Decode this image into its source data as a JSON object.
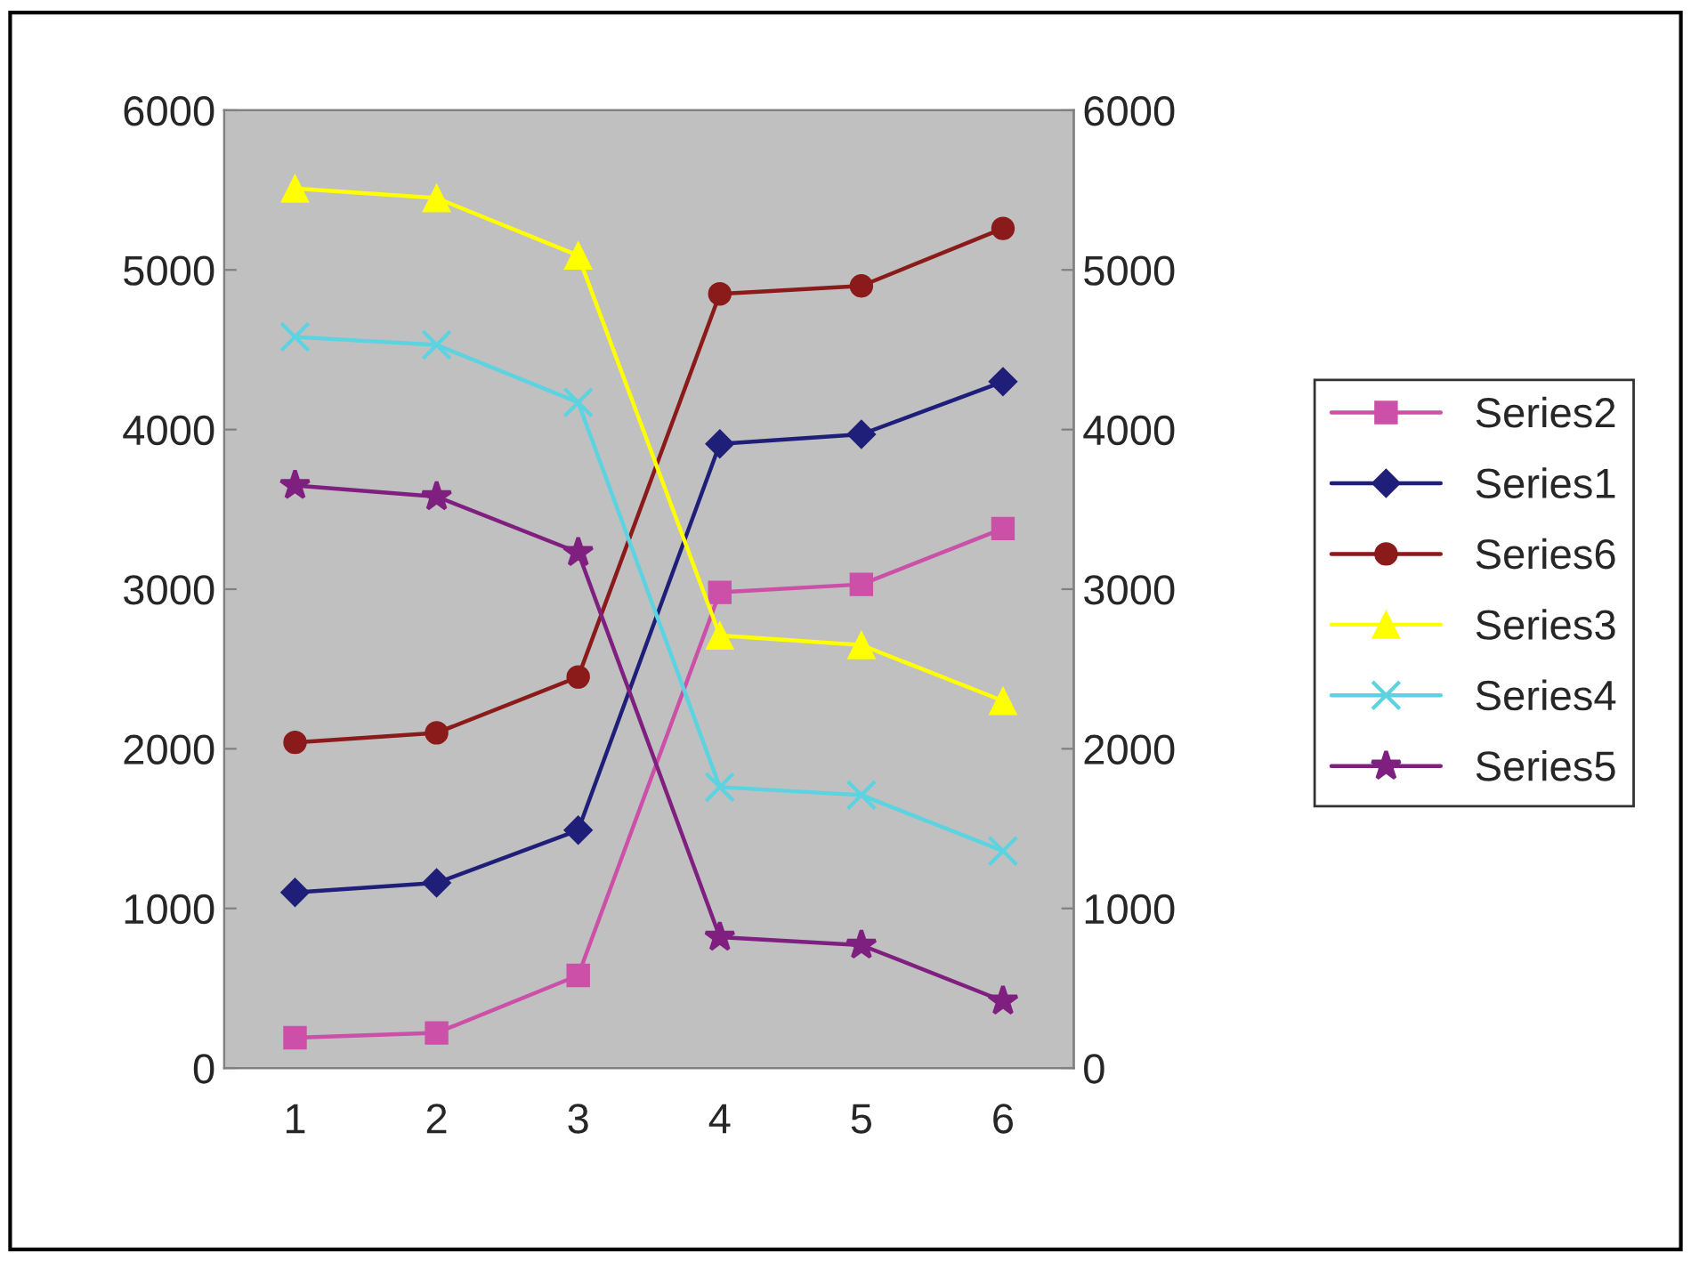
{
  "chart_data": {
    "type": "line",
    "categories": [
      "1",
      "2",
      "3",
      "4",
      "5",
      "6"
    ],
    "series": [
      {
        "name": "Series2",
        "color": "#cc4fa8",
        "marker": "square",
        "values": [
          190,
          220,
          580,
          2980,
          3030,
          3380
        ]
      },
      {
        "name": "Series1",
        "color": "#1f1f7a",
        "marker": "diamond",
        "values": [
          1100,
          1160,
          1490,
          3910,
          3970,
          4300
        ]
      },
      {
        "name": "Series6",
        "color": "#8b1a1a",
        "marker": "circle",
        "values": [
          2040,
          2100,
          2450,
          4850,
          4900,
          5260
        ]
      },
      {
        "name": "Series3",
        "color": "#ffff00",
        "marker": "triangle",
        "values": [
          5510,
          5450,
          5090,
          2710,
          2650,
          2300
        ]
      },
      {
        "name": "Series4",
        "color": "#5bd3e0",
        "marker": "cross",
        "values": [
          4580,
          4530,
          4170,
          1760,
          1710,
          1360
        ]
      },
      {
        "name": "Series5",
        "color": "#7f1f7f",
        "marker": "star",
        "values": [
          3650,
          3580,
          3230,
          820,
          770,
          420
        ]
      }
    ],
    "ylim": [
      0,
      6000
    ],
    "yticks": [
      0,
      1000,
      2000,
      3000,
      4000,
      5000,
      6000
    ],
    "y2lim": [
      0,
      6000
    ],
    "y2ticks": [
      0,
      1000,
      2000,
      3000,
      4000,
      5000,
      6000
    ],
    "grid": false,
    "legend": "right",
    "line_style": "solid"
  }
}
